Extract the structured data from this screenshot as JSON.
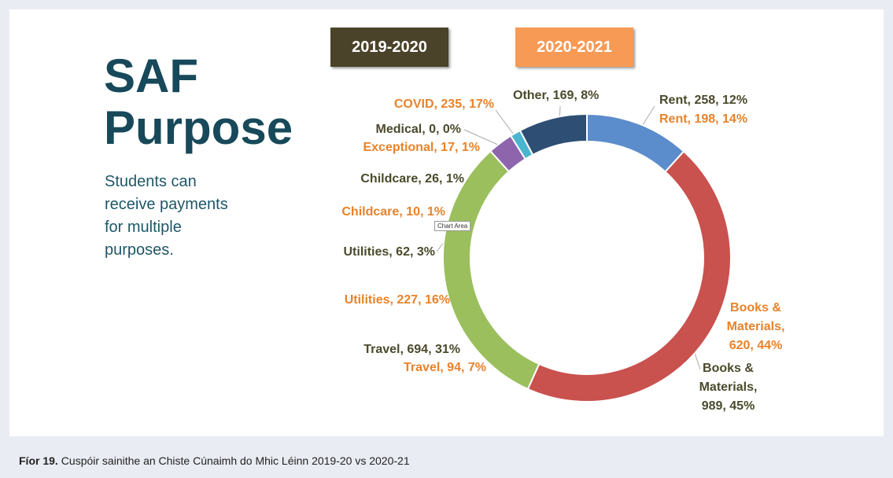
{
  "slide": {
    "title_lines": [
      "SAF",
      "Purpose"
    ],
    "text_lines": [
      "Students can",
      "receive payments",
      "for multiple",
      "purposes."
    ],
    "tooltip": "Chart Area"
  },
  "chart_data": {
    "type": "donut",
    "series": [
      {
        "name": "2019-2020",
        "color": "#4b4329",
        "colors": [
          "#5b8ccb",
          "#c9514e",
          "#9bbf5d",
          "#8e64ad",
          "#4bb5cf",
          "#e58a3a",
          "#2e4e74"
        ],
        "values": [
          258,
          989,
          694,
          62,
          26,
          0,
          169
        ],
        "percents": [
          12,
          45,
          31,
          3,
          1,
          0,
          8
        ],
        "value_labels": [
          "Rent, 258, 12%",
          "Books & Materials, 989, 45%",
          "Travel, 694, 31%",
          "Utilities, 62, 3%",
          "Childcare, 26, 1%",
          "Medical, 0, 0%",
          "Other, 169, 8%"
        ]
      },
      {
        "name": "2020-2021",
        "color": "#f79a55",
        "values": [
          198,
          620,
          94,
          227,
          10,
          17,
          235
        ],
        "percents": [
          14,
          44,
          7,
          16,
          1,
          1,
          17
        ],
        "value_labels": [
          "Rent, 198, 14%",
          "Books & Materials, 620, 44%",
          "Travel, 94, 7%",
          "Utilities, 227, 16%",
          "Childcare, 10, 1%",
          "Exceptional, 17, 1%",
          "COVID, 235, 17%"
        ]
      }
    ]
  },
  "caption": {
    "label": "Fíor 19.",
    "text": "Cuspóir sainithe an Chiste Cúnaimh do Mhic Léinn 2019-20 vs 2020-21"
  }
}
